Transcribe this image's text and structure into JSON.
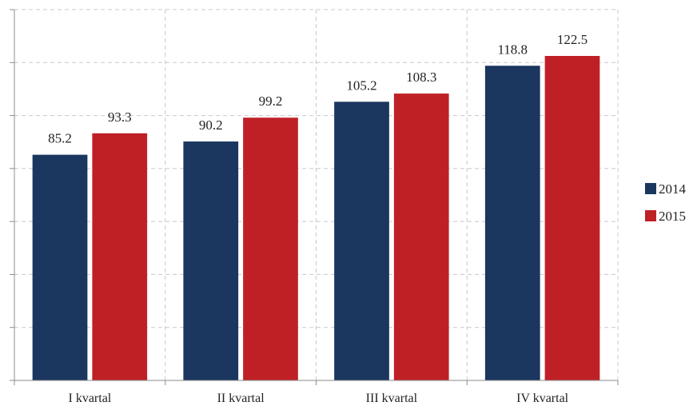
{
  "chart_data": {
    "type": "bar",
    "categories": [
      "I kvartal",
      "II kvartal",
      "III kvartal",
      "IV kvartal"
    ],
    "series": [
      {
        "name": "2014",
        "values": [
          85.2,
          90.2,
          105.2,
          118.8
        ],
        "color": "#1b365f"
      },
      {
        "name": "2015",
        "values": [
          93.3,
          99.2,
          108.3,
          122.5
        ],
        "color": "#bf2026"
      }
    ],
    "title": "",
    "xlabel": "",
    "ylabel": "",
    "ylim": [
      0,
      140
    ],
    "y_tick_step": 20,
    "y_tick_labels_shown": false,
    "grid": true,
    "legend_position": "right"
  }
}
